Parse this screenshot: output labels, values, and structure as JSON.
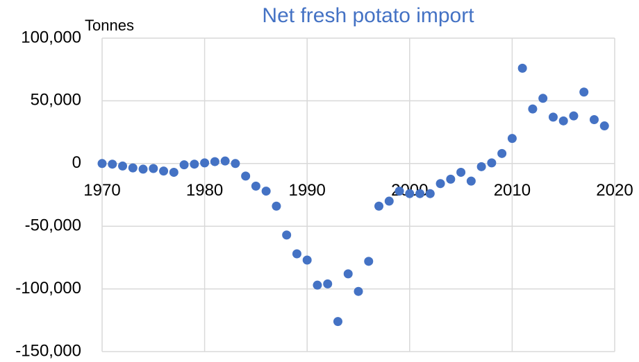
{
  "chart_data": {
    "type": "scatter",
    "title": "Net fresh potato import",
    "y_label": "Tonnes",
    "x": [
      1970,
      1971,
      1972,
      1973,
      1974,
      1975,
      1976,
      1977,
      1978,
      1979,
      1980,
      1981,
      1982,
      1983,
      1984,
      1985,
      1986,
      1987,
      1988,
      1989,
      1990,
      1991,
      1992,
      1993,
      1994,
      1995,
      1996,
      1997,
      1998,
      1999,
      2000,
      2001,
      2002,
      2003,
      2004,
      2005,
      2006,
      2007,
      2008,
      2009,
      2010,
      2011,
      2012,
      2013,
      2014,
      2015,
      2016,
      2017,
      2018,
      2019
    ],
    "values": [
      0,
      -500,
      -2000,
      -3500,
      -4500,
      -4000,
      -6000,
      -7000,
      -1000,
      -500,
      500,
      1500,
      2000,
      0,
      -10000,
      -18000,
      -22000,
      -34000,
      -57000,
      -72000,
      -77000,
      -97000,
      -96000,
      -126000,
      -88000,
      -102000,
      -78000,
      -34000,
      -30000,
      -22000,
      -24000,
      -24000,
      -24000,
      -16000,
      -12500,
      -7000,
      -14000,
      -2500,
      500,
      8000,
      20000,
      76000,
      43500,
      52000,
      37000,
      34000,
      38000,
      57000,
      35000,
      30000
    ],
    "color": "#4472c4",
    "xlim": [
      1970,
      2020
    ],
    "xticks": [
      1970,
      1980,
      1990,
      2000,
      2010,
      2020
    ],
    "ylim": [
      -150000,
      100000
    ],
    "yticks": [
      {
        "value": -150000,
        "label": "-150,000"
      },
      {
        "value": -100000,
        "label": "-100,000"
      },
      {
        "value": -50000,
        "label": "-50,000"
      },
      0,
      {
        "value": 50000,
        "label": "50,000"
      },
      {
        "value": 100000,
        "label": "100,000"
      }
    ],
    "grid": true
  }
}
